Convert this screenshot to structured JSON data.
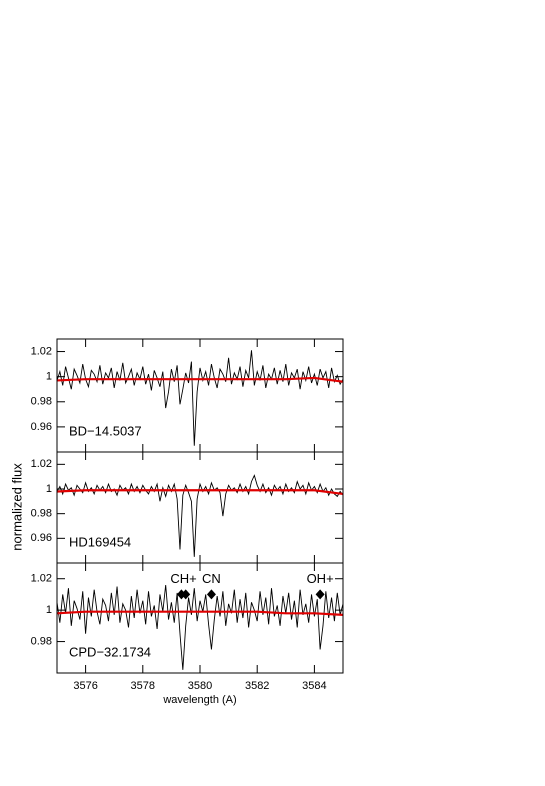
{
  "chart_data": [
    {
      "type": "line",
      "label": "BD−14.5037",
      "x": [
        3575.0,
        3575.1,
        3575.2,
        3575.3,
        3575.4,
        3575.5,
        3575.6,
        3575.7,
        3575.8,
        3575.9,
        3576.0,
        3576.1,
        3576.2,
        3576.3,
        3576.4,
        3576.5,
        3576.6,
        3576.7,
        3576.8,
        3576.9,
        3577.0,
        3577.1,
        3577.2,
        3577.3,
        3577.4,
        3577.5,
        3577.6,
        3577.7,
        3577.8,
        3577.9,
        3578.0,
        3578.1,
        3578.2,
        3578.3,
        3578.4,
        3578.5,
        3578.6,
        3578.7,
        3578.8,
        3578.9,
        3579.0,
        3579.1,
        3579.2,
        3579.3,
        3579.4,
        3579.5,
        3579.6,
        3579.7,
        3579.8,
        3579.9,
        3580.0,
        3580.1,
        3580.2,
        3580.3,
        3580.4,
        3580.5,
        3580.6,
        3580.7,
        3580.8,
        3580.9,
        3581.0,
        3581.1,
        3581.2,
        3581.3,
        3581.4,
        3581.5,
        3581.6,
        3581.7,
        3581.8,
        3581.9,
        3582.0,
        3582.1,
        3582.2,
        3582.3,
        3582.4,
        3582.5,
        3582.6,
        3582.7,
        3582.8,
        3582.9,
        3583.0,
        3583.1,
        3583.2,
        3583.3,
        3583.4,
        3583.5,
        3583.6,
        3583.7,
        3583.8,
        3583.9,
        3584.0,
        3584.1,
        3584.2,
        3584.3,
        3584.4,
        3584.5,
        3584.6,
        3584.7,
        3584.8,
        3584.9,
        3585.0
      ],
      "series": [
        {
          "color": "#000000",
          "values": [
            0.997,
            1.004,
            0.993,
            1.008,
            0.999,
            0.99,
            1.006,
            1.001,
            0.995,
            1.01,
            0.998,
            0.992,
            1.005,
            1.002,
            0.996,
            1.009,
            0.994,
            1.003,
            0.999,
            1.007,
            0.991,
            1.004,
            0.997,
            1.011,
            0.995,
            1.0,
            1.006,
            0.993,
            1.003,
            0.998,
            1.008,
            0.994,
            1.002,
            0.989,
            1.005,
            0.999,
            0.992,
            1.004,
            0.975,
            0.988,
            1.006,
            0.996,
            1.009,
            0.978,
            0.99,
            1.003,
            0.995,
            1.012,
            0.945,
            0.988,
            1.007,
            0.997,
            1.004,
            0.993,
            1.01,
            0.999,
            0.991,
            1.006,
            1.002,
            0.996,
            1.015,
            0.994,
            1.003,
            0.998,
            1.008,
            0.992,
            1.005,
            0.999,
            1.021,
            0.993,
            1.004,
            0.997,
            1.009,
            0.991,
            1.002,
            0.998,
            1.007,
            0.994,
            1.005,
            0.996,
            1.01,
            0.993,
            1.003,
            0.999,
            1.006,
            0.99,
            1.004,
            0.997,
            1.008,
            0.995,
            1.002,
            0.993,
            1.006,
            0.999,
            1.004,
            0.991,
            1.007,
            0.996,
            1.001,
            0.994,
            0.998
          ]
        },
        {
          "color": "#e00000",
          "x": [
            3575,
            3576,
            3577,
            3578,
            3579,
            3580,
            3581,
            3582,
            3583,
            3584,
            3585
          ],
          "values": [
            0.997,
            0.998,
            0.998,
            0.998,
            0.998,
            0.998,
            0.998,
            0.998,
            0.998,
            0.999,
            0.996
          ]
        }
      ],
      "xlim": [
        3575,
        3585
      ],
      "ylim": [
        0.94,
        1.03
      ],
      "yticks": [
        0.96,
        0.98,
        1,
        1.02
      ]
    },
    {
      "type": "line",
      "label": "HD169454",
      "ylabel": "normalized flux",
      "x": [
        3575.0,
        3575.1,
        3575.2,
        3575.3,
        3575.4,
        3575.5,
        3575.6,
        3575.7,
        3575.8,
        3575.9,
        3576.0,
        3576.1,
        3576.2,
        3576.3,
        3576.4,
        3576.5,
        3576.6,
        3576.7,
        3576.8,
        3576.9,
        3577.0,
        3577.1,
        3577.2,
        3577.3,
        3577.4,
        3577.5,
        3577.6,
        3577.7,
        3577.8,
        3577.9,
        3578.0,
        3578.1,
        3578.2,
        3578.3,
        3578.4,
        3578.5,
        3578.6,
        3578.7,
        3578.8,
        3578.9,
        3579.0,
        3579.1,
        3579.2,
        3579.3,
        3579.4,
        3579.5,
        3579.6,
        3579.7,
        3579.8,
        3579.9,
        3580.0,
        3580.1,
        3580.2,
        3580.3,
        3580.4,
        3580.5,
        3580.6,
        3580.7,
        3580.8,
        3580.9,
        3581.0,
        3581.1,
        3581.2,
        3581.3,
        3581.4,
        3581.5,
        3581.6,
        3581.7,
        3581.8,
        3581.9,
        3582.0,
        3582.1,
        3582.2,
        3582.3,
        3582.4,
        3582.5,
        3582.6,
        3582.7,
        3582.8,
        3582.9,
        3583.0,
        3583.1,
        3583.2,
        3583.3,
        3583.4,
        3583.5,
        3583.6,
        3583.7,
        3583.8,
        3583.9,
        3584.0,
        3584.1,
        3584.2,
        3584.3,
        3584.4,
        3584.5,
        3584.6,
        3584.7,
        3584.8,
        3584.9,
        3585.0
      ],
      "series": [
        {
          "color": "#000000",
          "values": [
            0.998,
            1.002,
            0.996,
            1.004,
            0.999,
            1.001,
            0.995,
            1.003,
            1.0,
            0.997,
            1.005,
            0.998,
            1.001,
            0.996,
            1.003,
            0.999,
            1.002,
            0.997,
            1.004,
            0.998,
            1.0,
            0.995,
            1.003,
            0.999,
            1.001,
            0.996,
            1.004,
            0.998,
            1.002,
            0.997,
            1.003,
            0.999,
            0.996,
            1.002,
            0.998,
            1.004,
            0.99,
            1.001,
            0.994,
            1.003,
            0.998,
            1.004,
            0.992,
            0.951,
            0.995,
            1.003,
            0.997,
            0.99,
            0.945,
            0.992,
            1.004,
            0.998,
            1.002,
            0.996,
            1.005,
            0.999,
            1.001,
            0.997,
            0.978,
            0.996,
            1.003,
            0.999,
            1.001,
            0.997,
            1.004,
            0.998,
            1.002,
            0.996,
            1.006,
            1.011,
            1.003,
            0.998,
            1.004,
            0.997,
            1.001,
            0.995,
            1.003,
            0.999,
            1.002,
            0.996,
            1.004,
            0.998,
            1.001,
            0.997,
            1.006,
            1.0,
            1.003,
            0.996,
            1.005,
            0.999,
            1.002,
            0.997,
            1.004,
            0.998,
            1.001,
            0.995,
            1.0,
            0.996,
            0.994,
            0.998,
            0.995
          ]
        },
        {
          "color": "#e00000",
          "x": [
            3575,
            3576,
            3577,
            3578,
            3579,
            3580,
            3581,
            3582,
            3583,
            3584,
            3585
          ],
          "values": [
            0.998,
            0.999,
            0.999,
            0.999,
            0.999,
            0.999,
            0.999,
            0.999,
            0.999,
            0.999,
            0.996
          ]
        }
      ],
      "xlim": [
        3575,
        3585
      ],
      "ylim": [
        0.94,
        1.03
      ],
      "yticks": [
        0.96,
        0.98,
        1,
        1.02
      ]
    },
    {
      "type": "line",
      "label": "CPD−32.1734",
      "xlabel": "wavelength (A)",
      "x": [
        3575.0,
        3575.1,
        3575.2,
        3575.3,
        3575.4,
        3575.5,
        3575.6,
        3575.7,
        3575.8,
        3575.9,
        3576.0,
        3576.1,
        3576.2,
        3576.3,
        3576.4,
        3576.5,
        3576.6,
        3576.7,
        3576.8,
        3576.9,
        3577.0,
        3577.1,
        3577.2,
        3577.3,
        3577.4,
        3577.5,
        3577.6,
        3577.7,
        3577.8,
        3577.9,
        3578.0,
        3578.1,
        3578.2,
        3578.3,
        3578.4,
        3578.5,
        3578.6,
        3578.7,
        3578.8,
        3578.9,
        3579.0,
        3579.1,
        3579.2,
        3579.3,
        3579.4,
        3579.5,
        3579.6,
        3579.7,
        3579.8,
        3579.9,
        3580.0,
        3580.1,
        3580.2,
        3580.3,
        3580.4,
        3580.5,
        3580.6,
        3580.7,
        3580.8,
        3580.9,
        3581.0,
        3581.1,
        3581.2,
        3581.3,
        3581.4,
        3581.5,
        3581.6,
        3581.7,
        3581.8,
        3581.9,
        3582.0,
        3582.1,
        3582.2,
        3582.3,
        3582.4,
        3582.5,
        3582.6,
        3582.7,
        3582.8,
        3582.9,
        3583.0,
        3583.1,
        3583.2,
        3583.3,
        3583.4,
        3583.5,
        3583.6,
        3583.7,
        3583.8,
        3583.9,
        3584.0,
        3584.1,
        3584.2,
        3584.3,
        3584.4,
        3584.5,
        3584.6,
        3584.7,
        3584.8,
        3584.9,
        3585.0
      ],
      "series": [
        {
          "color": "#000000",
          "values": [
            1.005,
            0.992,
            1.01,
            0.998,
            1.014,
            0.99,
            1.006,
            1.001,
            0.994,
            1.012,
            0.985,
            1.008,
            0.996,
            1.013,
            0.999,
            0.991,
            1.007,
            1.003,
            0.993,
            1.011,
            0.997,
            1.015,
            0.992,
            1.004,
            1.0,
            0.989,
            1.009,
            0.995,
            1.013,
            0.998,
            1.006,
            0.991,
            1.012,
            0.996,
            1.003,
            0.988,
            1.01,
            0.999,
            1.016,
            0.994,
            1.005,
            0.992,
            1.011,
            0.985,
            0.962,
            0.99,
            1.008,
            0.997,
            1.014,
            0.993,
            1.006,
            0.999,
            1.01,
            0.991,
            0.975,
            0.994,
            1.009,
            0.996,
            1.012,
            0.99,
            1.004,
            0.998,
            1.013,
            0.992,
            1.007,
            0.995,
            1.011,
            0.989,
            1.005,
            1.0,
            0.993,
            1.012,
            0.997,
            1.008,
            0.991,
            1.014,
            0.996,
            1.003,
            0.99,
            1.009,
            0.998,
            1.011,
            0.994,
            1.006,
            0.989,
            1.013,
            0.997,
            1.004,
            0.992,
            1.01,
            0.996,
            1.007,
            0.975,
            0.99,
            1.012,
            0.995,
            1.008,
            0.993,
            1.011,
            0.997,
            1.004
          ]
        },
        {
          "color": "#e00000",
          "x": [
            3575,
            3576,
            3577,
            3578,
            3579,
            3580,
            3581,
            3582,
            3583,
            3584,
            3585
          ],
          "values": [
            0.998,
            0.999,
            0.999,
            0.999,
            0.999,
            0.999,
            0.999,
            0.999,
            0.998,
            0.998,
            0.997
          ]
        }
      ],
      "xlim": [
        3575,
        3585
      ],
      "ylim": [
        0.96,
        1.03
      ],
      "yticks": [
        0.98,
        1,
        1.02
      ],
      "xticks": [
        3576,
        3578,
        3580,
        3582,
        3584
      ],
      "marker_y": 1.01,
      "annotations": [
        {
          "text": "CH+",
          "x": [
            3579.35,
            3579.5
          ]
        },
        {
          "text": "CN",
          "x": [
            3580.4
          ]
        },
        {
          "text": "OH+",
          "x": [
            3584.2
          ]
        }
      ]
    }
  ]
}
